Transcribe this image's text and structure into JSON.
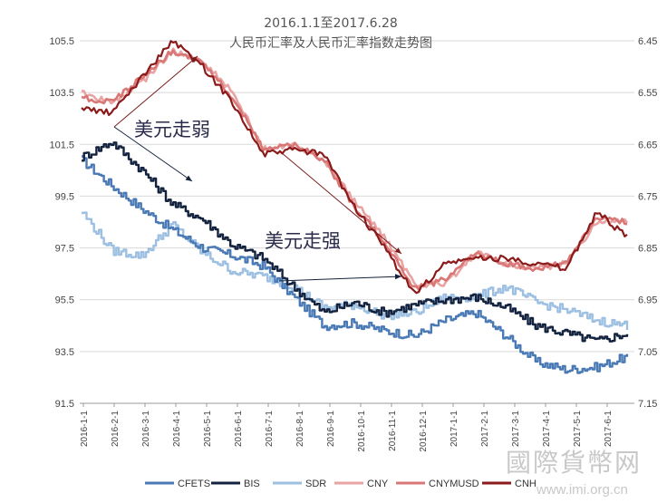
{
  "chart_data": {
    "type": "line",
    "title": "2016.1.1至2017.6.28",
    "subtitle": "人民币汇率及人民币汇率指数走势图",
    "left_axis": {
      "min": 91.5,
      "max": 105.5,
      "ticks": [
        "105.5",
        "103.5",
        "101.5",
        "99.5",
        "97.5",
        "95.5",
        "93.5",
        "91.5"
      ]
    },
    "right_axis": {
      "min": 6.45,
      "max": 7.15,
      "inverted": true,
      "ticks": [
        "6.45",
        "6.55",
        "6.65",
        "6.75",
        "6.85",
        "6.95",
        "7.05",
        "7.15"
      ]
    },
    "x_ticks": [
      "2016-1-1",
      "2016-2-1",
      "2016-3-1",
      "2016-4-1",
      "2016-5-1",
      "2016-6-1",
      "2016-7-1",
      "2016-8-1",
      "2016-9-1",
      "2016-10-1",
      "2016-11-1",
      "2016-12-1",
      "2017-1-1",
      "2017-2-1",
      "2017-3-1",
      "2017-4-1",
      "2017-5-1",
      "2017-6-1"
    ],
    "grid": true,
    "legend_position": "bottom",
    "annotations": [
      {
        "text": "美元走弱"
      },
      {
        "text": "美元走强"
      }
    ],
    "series": [
      {
        "name": "CFETS",
        "axis": "left",
        "color": "#4a7ab5",
        "values": [
          100.9,
          99.9,
          99.0,
          98.2,
          97.5,
          97.2,
          96.8,
          95.6,
          94.5,
          94.6,
          94.3,
          94.1,
          94.7,
          95.0,
          94.1,
          93.1,
          92.8,
          92.9,
          93.3
        ]
      },
      {
        "name": "BIS",
        "axis": "left",
        "color": "#13233f",
        "values": [
          101.0,
          101.6,
          100.5,
          99.2,
          98.6,
          97.6,
          97.1,
          96.0,
          95.0,
          95.4,
          95.0,
          95.3,
          95.5,
          95.6,
          95.2,
          94.5,
          94.2,
          93.9,
          94.2
        ]
      },
      {
        "name": "SDR",
        "axis": "left",
        "color": "#9dc0e2",
        "values": [
          98.9,
          97.4,
          97.2,
          98.4,
          97.3,
          96.6,
          96.4,
          96.0,
          95.2,
          95.3,
          94.9,
          95.0,
          95.6,
          95.6,
          96.0,
          95.4,
          95.1,
          94.7,
          94.5
        ]
      }
    ],
    "series_right": [
      {
        "name": "CNY",
        "axis": "right",
        "color": "#e8a3a3",
        "values": [
          6.55,
          6.57,
          6.53,
          6.47,
          6.49,
          6.55,
          6.66,
          6.65,
          6.68,
          6.76,
          6.83,
          6.92,
          6.92,
          6.86,
          6.88,
          6.89,
          6.88,
          6.8,
          6.8
        ]
      },
      {
        "name": "CNYMUSD",
        "axis": "right",
        "color": "#d97777",
        "values": [
          6.56,
          6.57,
          6.52,
          6.47,
          6.49,
          6.56,
          6.66,
          6.65,
          6.68,
          6.77,
          6.84,
          6.93,
          6.91,
          6.86,
          6.88,
          6.89,
          6.88,
          6.79,
          6.8
        ]
      },
      {
        "name": "CNH",
        "axis": "right",
        "color": "#8b1a1a",
        "values": [
          6.58,
          6.59,
          6.52,
          6.45,
          6.5,
          6.57,
          6.67,
          6.66,
          6.67,
          6.77,
          6.85,
          6.94,
          6.88,
          6.87,
          6.87,
          6.88,
          6.89,
          6.78,
          6.83
        ]
      }
    ]
  },
  "watermark": {
    "text": "國際貨幣网",
    "url": "www.imi.org.cn"
  }
}
